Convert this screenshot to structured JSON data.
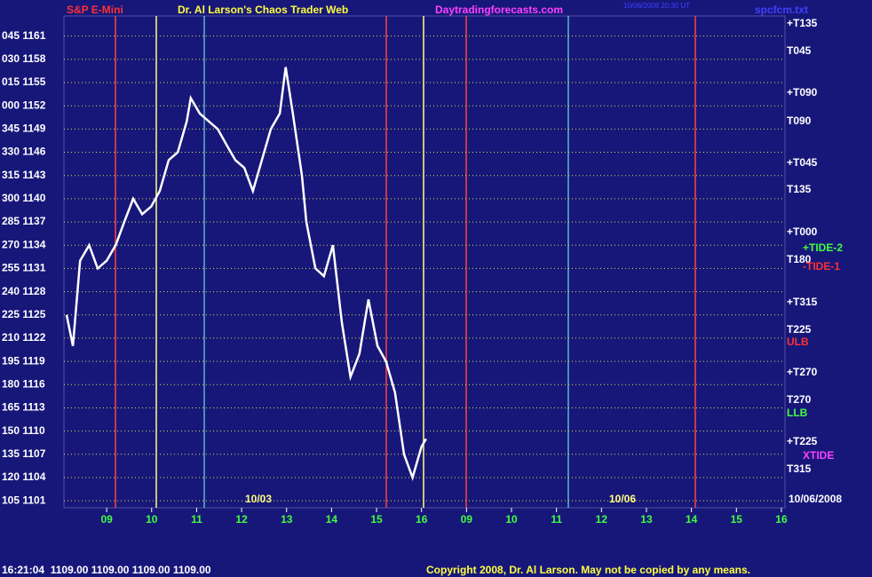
{
  "chart_data": {
    "type": "line",
    "x": [
      -0.89,
      -0.75,
      -0.59,
      -0.39,
      -0.2,
      0,
      0.2,
      0.39,
      0.59,
      0.79,
      0.99,
      1.18,
      1.38,
      1.58,
      1.78,
      1.87,
      2.07,
      2.27,
      2.47,
      2.66,
      2.86,
      3.06,
      3.25,
      3.45,
      3.65,
      3.85,
      3.98,
      4.14,
      4.34,
      4.44,
      4.64,
      4.83,
      5.03,
      5.23,
      5.42,
      5.62,
      5.82,
      6.02,
      6.21,
      6.41,
      6.61,
      6.8,
      7.0,
      7.1
    ],
    "series": [
      {
        "color": "#ffffff",
        "values": [
          1125,
          1121,
          1132,
          1134,
          1131,
          1132,
          1134,
          1137,
          1140,
          1138,
          1139,
          1141,
          1145,
          1146,
          1150,
          1153,
          1151,
          1150,
          1149,
          1147,
          1145,
          1144,
          1141,
          1145,
          1149,
          1151,
          1157,
          1151,
          1143,
          1137,
          1131,
          1130,
          1134,
          1124,
          1117,
          1120,
          1127,
          1121,
          1119,
          1115,
          1107,
          1104,
          1108,
          1109
        ]
      }
    ],
    "xlim": [
      -0.95,
      15.08
    ],
    "xticks": [
      {
        "value": 0,
        "label": "09"
      },
      {
        "value": 1,
        "label": "10"
      },
      {
        "value": 2,
        "label": "11"
      },
      {
        "value": 3,
        "label": "12"
      },
      {
        "value": 4,
        "label": "13"
      },
      {
        "value": 5,
        "label": "14"
      },
      {
        "value": 6,
        "label": "15"
      },
      {
        "value": 7,
        "label": "16"
      },
      {
        "value": 8,
        "label": "09"
      },
      {
        "value": 9,
        "label": "10"
      },
      {
        "value": 10,
        "label": "11"
      },
      {
        "value": 11,
        "label": "12"
      },
      {
        "value": 12,
        "label": "13"
      },
      {
        "value": 13,
        "label": "14"
      },
      {
        "value": 14,
        "label": "15"
      },
      {
        "value": 15,
        "label": "16"
      }
    ],
    "ylim": [
      1100.1,
      1163.6
    ],
    "yticks": [
      {
        "value": 1161,
        "label": "045 1161"
      },
      {
        "value": 1158,
        "label": "030 1158"
      },
      {
        "value": 1155,
        "label": "015 1155"
      },
      {
        "value": 1152,
        "label": "000 1152"
      },
      {
        "value": 1149,
        "label": "345 1149"
      },
      {
        "value": 1146,
        "label": "330 1146"
      },
      {
        "value": 1143,
        "label": "315 1143"
      },
      {
        "value": 1140,
        "label": "300 1140"
      },
      {
        "value": 1137,
        "label": "285 1137"
      },
      {
        "value": 1134,
        "label": "270 1134"
      },
      {
        "value": 1131,
        "label": "255 1131"
      },
      {
        "value": 1128,
        "label": "240 1128"
      },
      {
        "value": 1125,
        "label": "225 1125"
      },
      {
        "value": 1122,
        "label": "210 1122"
      },
      {
        "value": 1119,
        "label": "195 1119"
      },
      {
        "value": 1116,
        "label": "180 1116"
      },
      {
        "value": 1113,
        "label": "165 1113"
      },
      {
        "value": 1110,
        "label": "150 1110"
      },
      {
        "value": 1107,
        "label": "135 1107"
      },
      {
        "value": 1104,
        "label": "120 1104"
      },
      {
        "value": 1101,
        "label": "105 1101"
      }
    ],
    "grid": true
  },
  "header": {
    "symbol": "S&P E-Mini",
    "title": "Dr. Al Larson's Chaos Trader Web",
    "site": "Daytradingforecasts.com",
    "file": "spcfcm.txt",
    "stamp": "10/06/2008 20:30 UT"
  },
  "dates": [
    "10/03",
    "10/06",
    "10/06/2008"
  ],
  "right_labels": [
    "+T135",
    "T045",
    "+T090",
    "T090",
    "+T045",
    "T135",
    "+T000",
    "T180",
    "+T315",
    "T225",
    "ULB",
    "+T270",
    "T270",
    "LLB",
    "+T225",
    "T315",
    "+TIDE-2",
    "-TIDE-1",
    "XTIDE"
  ],
  "footer": {
    "quote": "16:21:04  1109.00 1109.00 1109.00 1109.00",
    "copyright": "Copyright 2008, Dr. Al Larson. May not be copied by any means."
  }
}
